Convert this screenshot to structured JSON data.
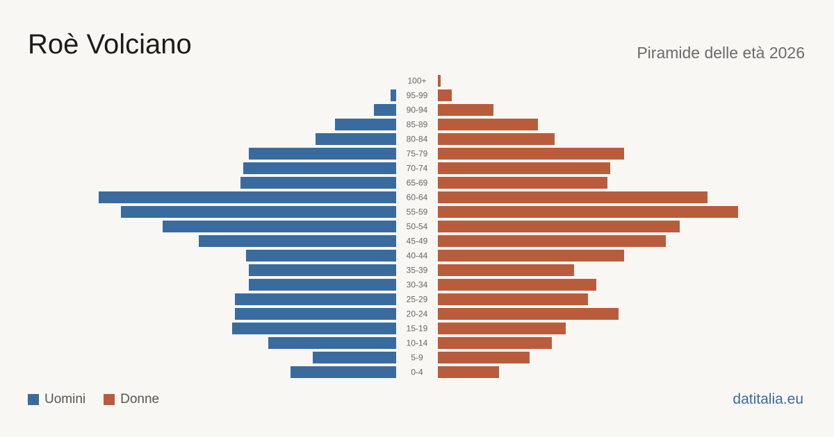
{
  "header": {
    "title": "Roè Volciano",
    "subtitle": "Piramide delle età 2026"
  },
  "legend": {
    "men_label": "Uomini",
    "women_label": "Donne"
  },
  "footer": {
    "source": "datitalia.eu"
  },
  "colors": {
    "men": "#3a6b9e",
    "women": "#b95c3c",
    "background": "#f9f7f3"
  },
  "chart_data": {
    "type": "bar",
    "orientation": "horizontal-population-pyramid",
    "categories": [
      "100+",
      "95-99",
      "90-94",
      "85-89",
      "80-84",
      "75-79",
      "70-74",
      "65-69",
      "60-64",
      "55-59",
      "50-54",
      "45-49",
      "40-44",
      "35-39",
      "30-34",
      "25-29",
      "20-24",
      "15-19",
      "10-14",
      "5-9",
      "0-4"
    ],
    "series": [
      {
        "name": "Uomini",
        "values": [
          0,
          2,
          8,
          22,
          29,
          53,
          55,
          56,
          107,
          99,
          84,
          71,
          54,
          53,
          53,
          58,
          58,
          59,
          46,
          30,
          38
        ]
      },
      {
        "name": "Donne",
        "values": [
          1,
          5,
          20,
          36,
          42,
          67,
          62,
          61,
          97,
          108,
          87,
          82,
          67,
          49,
          57,
          54,
          65,
          46,
          41,
          33,
          22
        ]
      }
    ],
    "legend_position": "bottom-left",
    "grid": false
  }
}
